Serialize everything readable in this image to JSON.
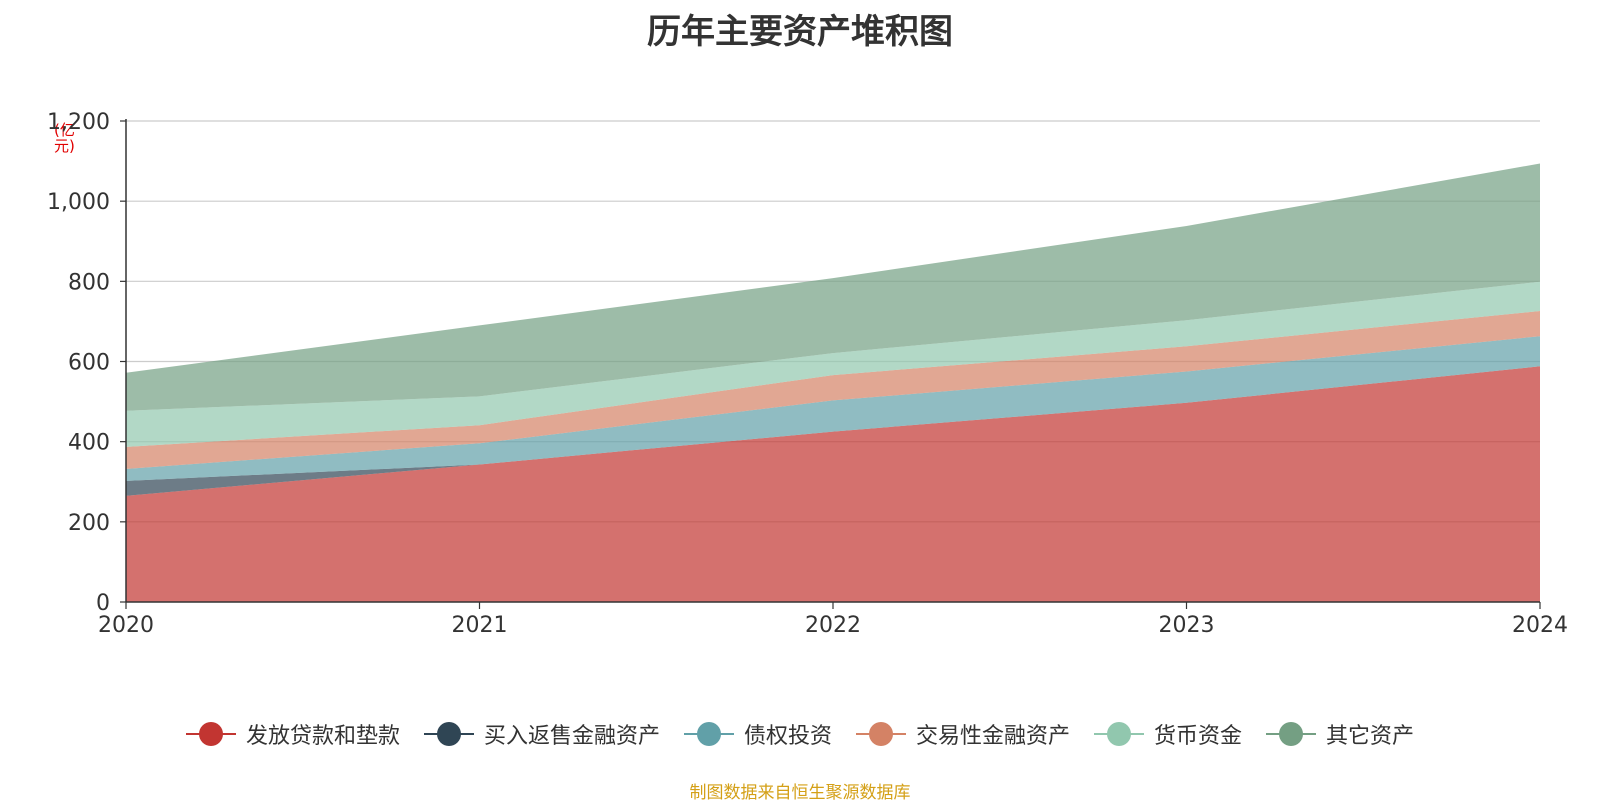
{
  "title": "历年主要资产堆积图",
  "source": "制图数据来自恒生聚源数据库",
  "chart_data": {
    "type": "area",
    "stacked": true,
    "title": "历年主要资产堆积图",
    "unit": "(亿元)",
    "x": [
      "2020",
      "2021",
      "2022",
      "2023",
      "2024"
    ],
    "ylim": [
      0,
      1200
    ],
    "yticks": [
      "0",
      "200",
      "400",
      "600",
      "800",
      "1,000",
      "1,200"
    ],
    "grid": true,
    "legend_position": "bottom",
    "series": [
      {
        "name": "发放贷款和垫款",
        "color": "#c23531",
        "values": [
          265,
          343,
          425,
          497,
          588
        ]
      },
      {
        "name": "买入返售金融资产",
        "color": "#2f4554",
        "values": [
          37,
          0,
          0,
          0,
          0
        ]
      },
      {
        "name": "债权投资",
        "color": "#61a0a8",
        "values": [
          30,
          53,
          78,
          78,
          75
        ]
      },
      {
        "name": "交易性金融资产",
        "color": "#d48265",
        "values": [
          55,
          45,
          63,
          63,
          63
        ]
      },
      {
        "name": "货币资金",
        "color": "#91c7ae",
        "values": [
          90,
          72,
          55,
          65,
          73
        ]
      },
      {
        "name": "其它资产",
        "color": "#749f83",
        "values": [
          95,
          177,
          187,
          235,
          295
        ]
      }
    ]
  }
}
